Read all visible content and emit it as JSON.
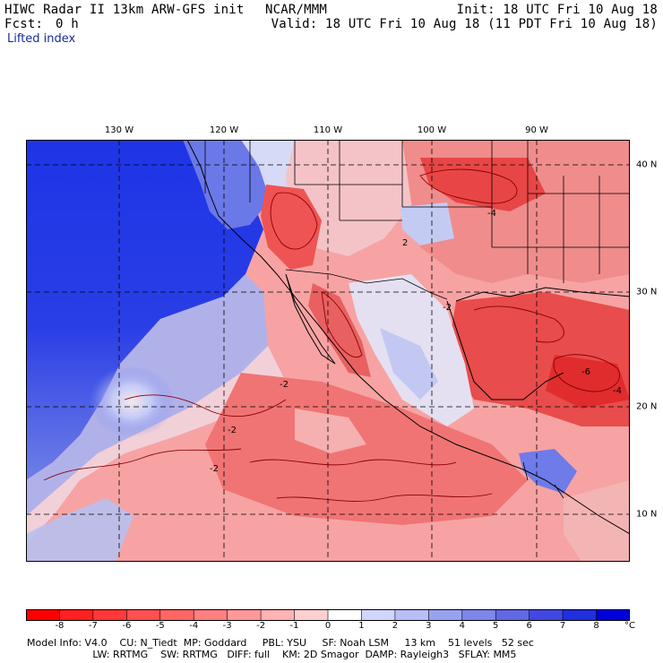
{
  "header": {
    "model_title": "HIWC Radar II 13km ARW-GFS init",
    "org": "NCAR/MMM",
    "init": "Init: 18 UTC Fri 10 Aug 18",
    "fcst_label": "Fcst:",
    "fcst_value": "0 h",
    "valid": "Valid: 18 UTC Fri 10 Aug 18 (11 PDT Fri 10 Aug 18)"
  },
  "variable": "Lifted index",
  "map": {
    "lon_labels": [
      "130 W",
      "120 W",
      "110 W",
      "100 W",
      "90 W"
    ],
    "lat_labels": [
      "40 N",
      "30 N",
      "20 N",
      "10 N"
    ],
    "contour_labels": [
      "-2",
      "-4",
      "-6",
      "2"
    ]
  },
  "colorbar": {
    "ticks": [
      "-8",
      "-7",
      "-6",
      "-5",
      "-4",
      "-3",
      "-2",
      "-1",
      "0",
      "1",
      "2",
      "3",
      "4",
      "5",
      "6",
      "7",
      "8"
    ],
    "unit": "°C",
    "colors": [
      "#ff0000",
      "#ff2020",
      "#ff3838",
      "#ff5050",
      "#ff6666",
      "#ff8080",
      "#ff9999",
      "#ffb3b3",
      "#ffd0d0",
      "#ffffff",
      "#d0d6ff",
      "#b8bff8",
      "#9aa2f0",
      "#7d86ea",
      "#6068e4",
      "#4048e0",
      "#2030dc",
      "#0000dd"
    ]
  },
  "model_info": {
    "line1": "Model Info: V4.0    CU: N_Tiedt  MP: Goddard     PBL: YSU     SF: Noah LSM     13 km    51 levels   52 sec",
    "line2": "                     LW: RRTMG    SW: RRTMG   DIFF: full    KM: 2D Smagor  DAMP: Rayleigh3   SFLAY: MM5"
  },
  "palette": {
    "ocean_stable": "#1e34e6",
    "ocean_mid": "#5e6fe8",
    "neutral": "#f4eaf0",
    "unstable_light": "#f59a9a",
    "unstable": "#ee6c6c",
    "unstable_strong": "#e83434",
    "contour": "#8b0000",
    "border": "#000000"
  }
}
